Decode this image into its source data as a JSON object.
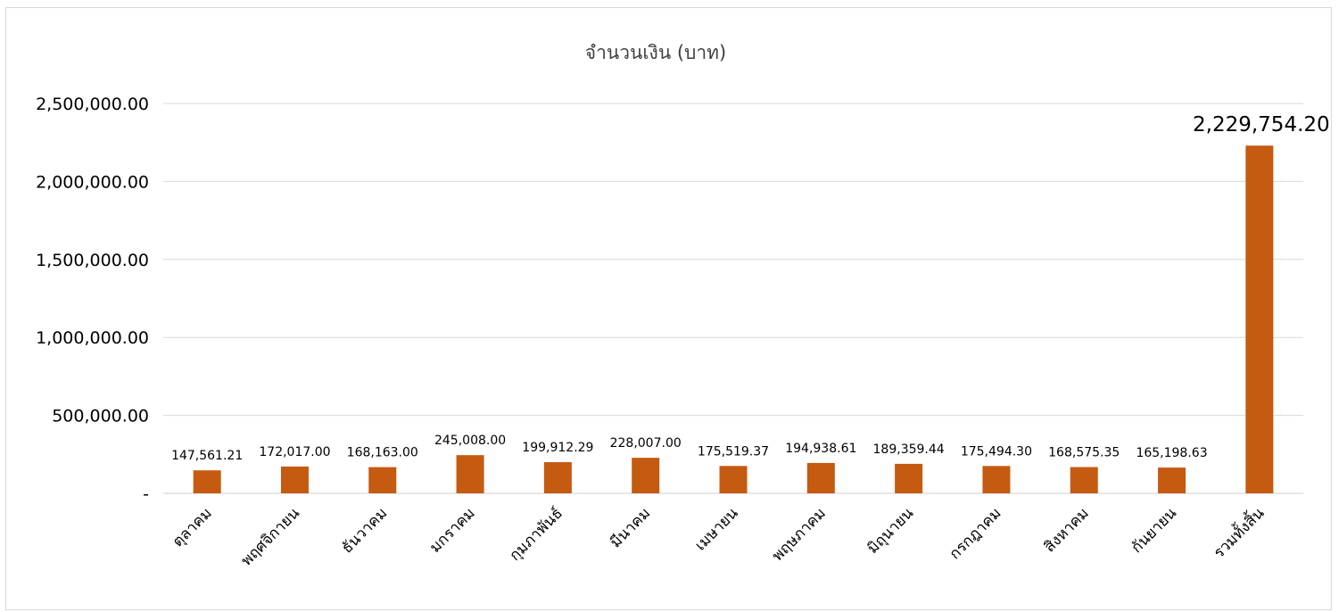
{
  "chart_data": {
    "type": "bar",
    "title": "จำนวนเงิน (บาท)",
    "xlabel": "",
    "ylabel": "",
    "ylim": [
      0,
      2500000
    ],
    "yticks": [
      0,
      500000,
      1000000,
      1500000,
      2000000,
      2500000
    ],
    "ytick_labels": [
      "-",
      "500,000.00",
      "1,000,000.00",
      "1,500,000.00",
      "2,000,000.00",
      "2,500,000.00"
    ],
    "categories": [
      "ตุลาคม",
      "พฤศจิกายน",
      "ธันวาคม",
      "มกราคม",
      "กุมภาพันธ์",
      "มีนาคม",
      "เมษายน",
      "พฤษภาคม",
      "มิถุนายน",
      "กรกฎาคม",
      "สิงหาคม",
      "กันยายน",
      "รวมทั้งสิ้น"
    ],
    "values": [
      147561.21,
      172017.0,
      168163.0,
      245008.0,
      199912.29,
      228007.0,
      175519.37,
      194938.61,
      189359.44,
      175494.3,
      168575.35,
      165198.63,
      2229754.2
    ],
    "value_labels": [
      "147,561.21",
      "172,017.00",
      "168,163.00",
      "245,008.00",
      "199,912.29",
      "228,007.00",
      "175,519.37",
      "194,938.61",
      "189,359.44",
      "175,494.30",
      "168,575.35",
      "165,198.63",
      "2,229,754.20"
    ],
    "grid": true,
    "legend": "none",
    "bar_color": "#c55a11",
    "grid_color": "#d9d9d9"
  }
}
